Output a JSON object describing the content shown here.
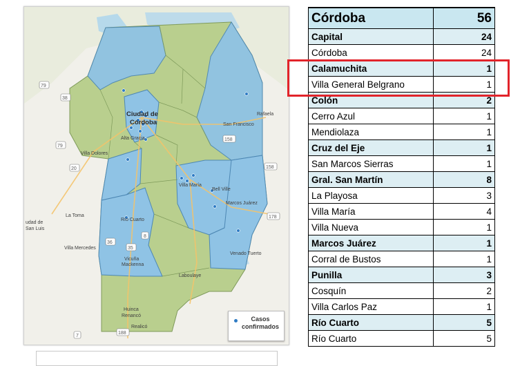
{
  "map": {
    "legend_label": "Casos confirmados",
    "place_labels": [
      {
        "id": "rafaela",
        "text": "Rafaela"
      },
      {
        "id": "san-francisco",
        "text": "San Francisco"
      },
      {
        "id": "ciudad-de-cordoba-1",
        "text": "Ciudad de"
      },
      {
        "id": "ciudad-de-cordoba-2",
        "text": "Córdoba"
      },
      {
        "id": "alta-gracia",
        "text": "Alta Gracia"
      },
      {
        "id": "villa-dolores",
        "text": "Villa Dolores"
      },
      {
        "id": "villa-maria",
        "text": "Villa María"
      },
      {
        "id": "bell-ville",
        "text": "Bell Ville"
      },
      {
        "id": "marcos-juarez",
        "text": "Marcos Juárez"
      },
      {
        "id": "la-toma",
        "text": "La Toma"
      },
      {
        "id": "rio-cuarto",
        "text": "Río Cuarto"
      },
      {
        "id": "san-luis-1",
        "text": "udad de"
      },
      {
        "id": "san-luis-2",
        "text": "San Luis"
      },
      {
        "id": "villa-mercedes",
        "text": "Villa Mercedes"
      },
      {
        "id": "vicuna-1",
        "text": "Vicuña"
      },
      {
        "id": "vicuna-2",
        "text": "Mackenna"
      },
      {
        "id": "venado-tuerto",
        "text": "Venado Tuerto"
      },
      {
        "id": "laboulaye",
        "text": "Laboulaye"
      },
      {
        "id": "huinca-1",
        "text": "Huinca"
      },
      {
        "id": "huinca-2",
        "text": "Renancó"
      },
      {
        "id": "realico",
        "text": "Realicó"
      }
    ],
    "route_shields": [
      {
        "id": "r79a",
        "text": "79"
      },
      {
        "id": "r79b",
        "text": "79"
      },
      {
        "id": "r38",
        "text": "38"
      },
      {
        "id": "r20",
        "text": "20"
      },
      {
        "id": "r158a",
        "text": "158"
      },
      {
        "id": "r158b",
        "text": "158"
      },
      {
        "id": "r178",
        "text": "178"
      },
      {
        "id": "r36",
        "text": "36"
      },
      {
        "id": "r8",
        "text": "8"
      },
      {
        "id": "r35",
        "text": "35"
      },
      {
        "id": "r188",
        "text": "188"
      },
      {
        "id": "r7",
        "text": "7"
      }
    ]
  },
  "table": {
    "title": "Córdoba",
    "total": "56",
    "rows": [
      {
        "name": "Capital",
        "value": "24",
        "kind": "dept"
      },
      {
        "name": "Córdoba",
        "value": "24",
        "kind": "city"
      },
      {
        "name": "Calamuchita",
        "value": "1",
        "kind": "dept"
      },
      {
        "name": "Villa General Belgrano",
        "value": "1",
        "kind": "city"
      },
      {
        "name": "Colón",
        "value": "2",
        "kind": "dept"
      },
      {
        "name": "Cerro Azul",
        "value": "1",
        "kind": "city"
      },
      {
        "name": "Mendiolaza",
        "value": "1",
        "kind": "city"
      },
      {
        "name": "Cruz del Eje",
        "value": "1",
        "kind": "dept"
      },
      {
        "name": "San Marcos Sierras",
        "value": "1",
        "kind": "city"
      },
      {
        "name": "Gral. San Martín",
        "value": "8",
        "kind": "dept"
      },
      {
        "name": "La Playosa",
        "value": "3",
        "kind": "city"
      },
      {
        "name": "Villa María",
        "value": "4",
        "kind": "city"
      },
      {
        "name": "Villa Nueva",
        "value": "1",
        "kind": "city"
      },
      {
        "name": "Marcos Juárez",
        "value": "1",
        "kind": "dept"
      },
      {
        "name": "Corral de Bustos",
        "value": "1",
        "kind": "city"
      },
      {
        "name": "Punilla",
        "value": "3",
        "kind": "dept"
      },
      {
        "name": "Cosquín",
        "value": "2",
        "kind": "city"
      },
      {
        "name": "Villa Carlos Paz",
        "value": "1",
        "kind": "city"
      },
      {
        "name": "Río Cuarto",
        "value": "5",
        "kind": "dept"
      },
      {
        "name": "Río Cuarto",
        "value": "5",
        "kind": "city"
      }
    ]
  },
  "colors": {
    "highlight": "#e2232a",
    "dept_fill": "#ddeef3",
    "header_fill": "#c9e7f0",
    "map_green": "#b9cf8e",
    "map_blue": "#8fc3e5"
  }
}
